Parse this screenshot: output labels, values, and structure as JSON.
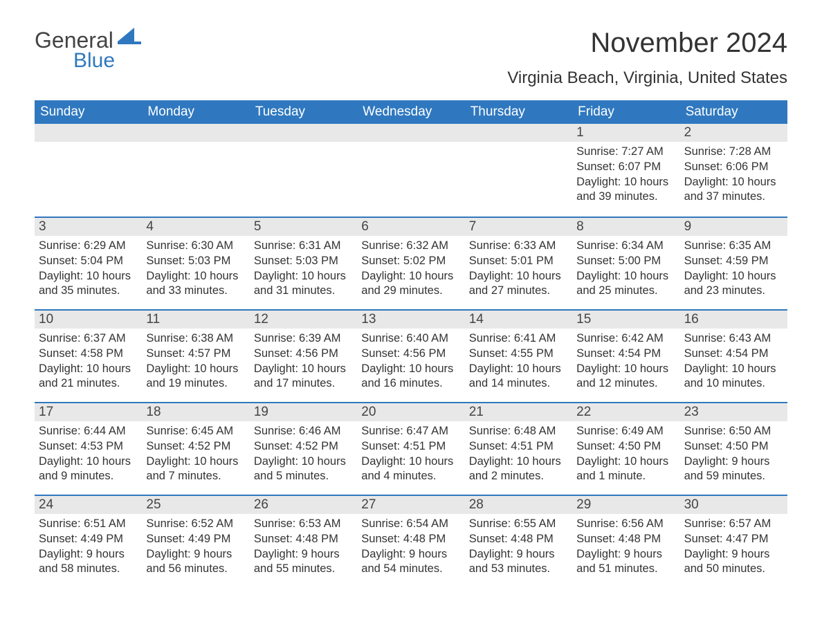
{
  "brand": {
    "text1": "General",
    "text2": "Blue",
    "icon_color": "#2f78bf"
  },
  "title": {
    "month": "November 2024",
    "location": "Virginia Beach, Virginia, United States"
  },
  "colors": {
    "header_bg": "#2f78bf",
    "header_text": "#ffffff",
    "daynum_bg": "#e8e8e8",
    "week_border": "#2f78bf",
    "body_text": "#333333",
    "background": "#ffffff"
  },
  "weekdays": [
    "Sunday",
    "Monday",
    "Tuesday",
    "Wednesday",
    "Thursday",
    "Friday",
    "Saturday"
  ],
  "weeks": [
    [
      null,
      null,
      null,
      null,
      null,
      {
        "n": "1",
        "sunrise": "Sunrise: 7:27 AM",
        "sunset": "Sunset: 6:07 PM",
        "daylight": "Daylight: 10 hours and 39 minutes."
      },
      {
        "n": "2",
        "sunrise": "Sunrise: 7:28 AM",
        "sunset": "Sunset: 6:06 PM",
        "daylight": "Daylight: 10 hours and 37 minutes."
      }
    ],
    [
      {
        "n": "3",
        "sunrise": "Sunrise: 6:29 AM",
        "sunset": "Sunset: 5:04 PM",
        "daylight": "Daylight: 10 hours and 35 minutes."
      },
      {
        "n": "4",
        "sunrise": "Sunrise: 6:30 AM",
        "sunset": "Sunset: 5:03 PM",
        "daylight": "Daylight: 10 hours and 33 minutes."
      },
      {
        "n": "5",
        "sunrise": "Sunrise: 6:31 AM",
        "sunset": "Sunset: 5:03 PM",
        "daylight": "Daylight: 10 hours and 31 minutes."
      },
      {
        "n": "6",
        "sunrise": "Sunrise: 6:32 AM",
        "sunset": "Sunset: 5:02 PM",
        "daylight": "Daylight: 10 hours and 29 minutes."
      },
      {
        "n": "7",
        "sunrise": "Sunrise: 6:33 AM",
        "sunset": "Sunset: 5:01 PM",
        "daylight": "Daylight: 10 hours and 27 minutes."
      },
      {
        "n": "8",
        "sunrise": "Sunrise: 6:34 AM",
        "sunset": "Sunset: 5:00 PM",
        "daylight": "Daylight: 10 hours and 25 minutes."
      },
      {
        "n": "9",
        "sunrise": "Sunrise: 6:35 AM",
        "sunset": "Sunset: 4:59 PM",
        "daylight": "Daylight: 10 hours and 23 minutes."
      }
    ],
    [
      {
        "n": "10",
        "sunrise": "Sunrise: 6:37 AM",
        "sunset": "Sunset: 4:58 PM",
        "daylight": "Daylight: 10 hours and 21 minutes."
      },
      {
        "n": "11",
        "sunrise": "Sunrise: 6:38 AM",
        "sunset": "Sunset: 4:57 PM",
        "daylight": "Daylight: 10 hours and 19 minutes."
      },
      {
        "n": "12",
        "sunrise": "Sunrise: 6:39 AM",
        "sunset": "Sunset: 4:56 PM",
        "daylight": "Daylight: 10 hours and 17 minutes."
      },
      {
        "n": "13",
        "sunrise": "Sunrise: 6:40 AM",
        "sunset": "Sunset: 4:56 PM",
        "daylight": "Daylight: 10 hours and 16 minutes."
      },
      {
        "n": "14",
        "sunrise": "Sunrise: 6:41 AM",
        "sunset": "Sunset: 4:55 PM",
        "daylight": "Daylight: 10 hours and 14 minutes."
      },
      {
        "n": "15",
        "sunrise": "Sunrise: 6:42 AM",
        "sunset": "Sunset: 4:54 PM",
        "daylight": "Daylight: 10 hours and 12 minutes."
      },
      {
        "n": "16",
        "sunrise": "Sunrise: 6:43 AM",
        "sunset": "Sunset: 4:54 PM",
        "daylight": "Daylight: 10 hours and 10 minutes."
      }
    ],
    [
      {
        "n": "17",
        "sunrise": "Sunrise: 6:44 AM",
        "sunset": "Sunset: 4:53 PM",
        "daylight": "Daylight: 10 hours and 9 minutes."
      },
      {
        "n": "18",
        "sunrise": "Sunrise: 6:45 AM",
        "sunset": "Sunset: 4:52 PM",
        "daylight": "Daylight: 10 hours and 7 minutes."
      },
      {
        "n": "19",
        "sunrise": "Sunrise: 6:46 AM",
        "sunset": "Sunset: 4:52 PM",
        "daylight": "Daylight: 10 hours and 5 minutes."
      },
      {
        "n": "20",
        "sunrise": "Sunrise: 6:47 AM",
        "sunset": "Sunset: 4:51 PM",
        "daylight": "Daylight: 10 hours and 4 minutes."
      },
      {
        "n": "21",
        "sunrise": "Sunrise: 6:48 AM",
        "sunset": "Sunset: 4:51 PM",
        "daylight": "Daylight: 10 hours and 2 minutes."
      },
      {
        "n": "22",
        "sunrise": "Sunrise: 6:49 AM",
        "sunset": "Sunset: 4:50 PM",
        "daylight": "Daylight: 10 hours and 1 minute."
      },
      {
        "n": "23",
        "sunrise": "Sunrise: 6:50 AM",
        "sunset": "Sunset: 4:50 PM",
        "daylight": "Daylight: 9 hours and 59 minutes."
      }
    ],
    [
      {
        "n": "24",
        "sunrise": "Sunrise: 6:51 AM",
        "sunset": "Sunset: 4:49 PM",
        "daylight": "Daylight: 9 hours and 58 minutes."
      },
      {
        "n": "25",
        "sunrise": "Sunrise: 6:52 AM",
        "sunset": "Sunset: 4:49 PM",
        "daylight": "Daylight: 9 hours and 56 minutes."
      },
      {
        "n": "26",
        "sunrise": "Sunrise: 6:53 AM",
        "sunset": "Sunset: 4:48 PM",
        "daylight": "Daylight: 9 hours and 55 minutes."
      },
      {
        "n": "27",
        "sunrise": "Sunrise: 6:54 AM",
        "sunset": "Sunset: 4:48 PM",
        "daylight": "Daylight: 9 hours and 54 minutes."
      },
      {
        "n": "28",
        "sunrise": "Sunrise: 6:55 AM",
        "sunset": "Sunset: 4:48 PM",
        "daylight": "Daylight: 9 hours and 53 minutes."
      },
      {
        "n": "29",
        "sunrise": "Sunrise: 6:56 AM",
        "sunset": "Sunset: 4:48 PM",
        "daylight": "Daylight: 9 hours and 51 minutes."
      },
      {
        "n": "30",
        "sunrise": "Sunrise: 6:57 AM",
        "sunset": "Sunset: 4:47 PM",
        "daylight": "Daylight: 9 hours and 50 minutes."
      }
    ]
  ]
}
